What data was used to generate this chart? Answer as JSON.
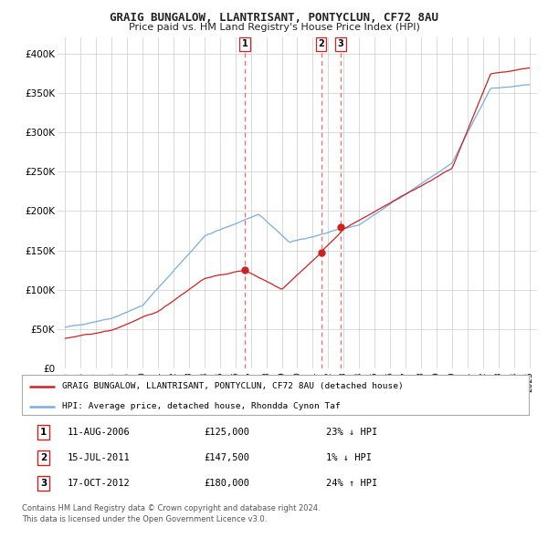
{
  "title": "GRAIG BUNGALOW, LLANTRISANT, PONTYCLUN, CF72 8AU",
  "subtitle": "Price paid vs. HM Land Registry's House Price Index (HPI)",
  "legend_line1": "GRAIG BUNGALOW, LLANTRISANT, PONTYCLUN, CF72 8AU (detached house)",
  "legend_line2": "HPI: Average price, detached house, Rhondda Cynon Taf",
  "transactions": [
    {
      "num": 1,
      "date": "11-AUG-2006",
      "price": 125000,
      "hpi_diff": "23% ↓ HPI",
      "x_year": 2006.6
    },
    {
      "num": 2,
      "date": "15-JUL-2011",
      "price": 147500,
      "hpi_diff": "1% ↓ HPI",
      "x_year": 2011.54
    },
    {
      "num": 3,
      "date": "17-OCT-2012",
      "price": 180000,
      "hpi_diff": "24% ↑ HPI",
      "x_year": 2012.8
    }
  ],
  "footer_line1": "Contains HM Land Registry data © Crown copyright and database right 2024.",
  "footer_line2": "This data is licensed under the Open Government Licence v3.0.",
  "hpi_color": "#7aade0",
  "price_color": "#cc2222",
  "vline_color": "#ff6666",
  "marker_color": "#cc2222",
  "background_color": "#ffffff",
  "grid_color": "#cccccc",
  "ylim": [
    0,
    420000
  ],
  "xlim_start": 1994.5,
  "xlim_end": 2025.5,
  "yticks": [
    0,
    50000,
    100000,
    150000,
    200000,
    250000,
    300000,
    350000,
    400000
  ],
  "ytick_labels": [
    "£0",
    "£50K",
    "£100K",
    "£150K",
    "£200K",
    "£250K",
    "£300K",
    "£350K",
    "£400K"
  ],
  "xticks": [
    1995,
    1996,
    1997,
    1998,
    1999,
    2000,
    2001,
    2002,
    2003,
    2004,
    2005,
    2006,
    2007,
    2008,
    2009,
    2010,
    2011,
    2012,
    2013,
    2014,
    2015,
    2016,
    2017,
    2018,
    2019,
    2020,
    2021,
    2022,
    2023,
    2024,
    2025
  ]
}
